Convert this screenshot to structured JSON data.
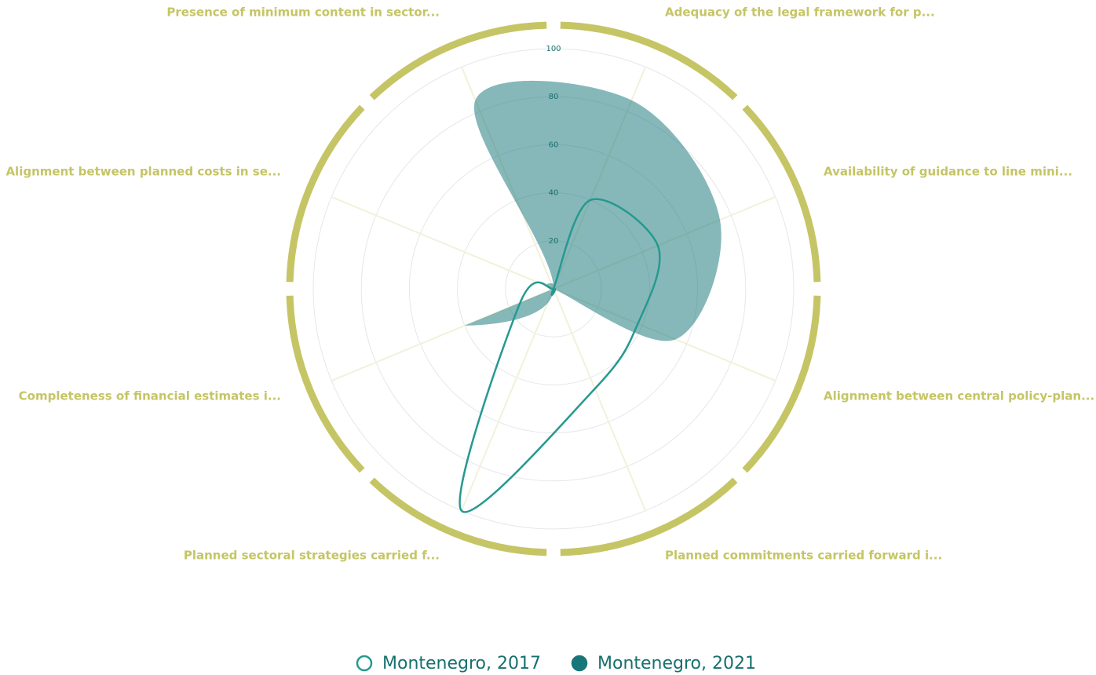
{
  "chart_data": {
    "type": "radar",
    "categories": [
      "Presence of minimum content in sector...",
      "Adequacy of the legal framework for p...",
      "Availability of guidance to line mini...",
      "Alignment between central policy-plan...",
      "Planned commitments carried forward i...",
      "Planned sectoral strategies carried f...",
      "Completeness of financial estimates i...",
      "Alignment between planned costs in se..."
    ],
    "series": [
      {
        "name": "Montenegro, 2017",
        "color": "#26998f",
        "fill": false,
        "values": [
          0,
          40,
          47,
          38,
          45,
          100,
          15,
          0
        ]
      },
      {
        "name": "Montenegro, 2021",
        "color": "#17767a",
        "fill": true,
        "values": [
          85,
          85,
          75,
          55,
          0,
          0,
          40,
          0
        ]
      }
    ],
    "ylim": [
      0,
      100
    ],
    "yticks": [
      20,
      40,
      60,
      80,
      100
    ],
    "grid": true,
    "legend": "bottom"
  }
}
